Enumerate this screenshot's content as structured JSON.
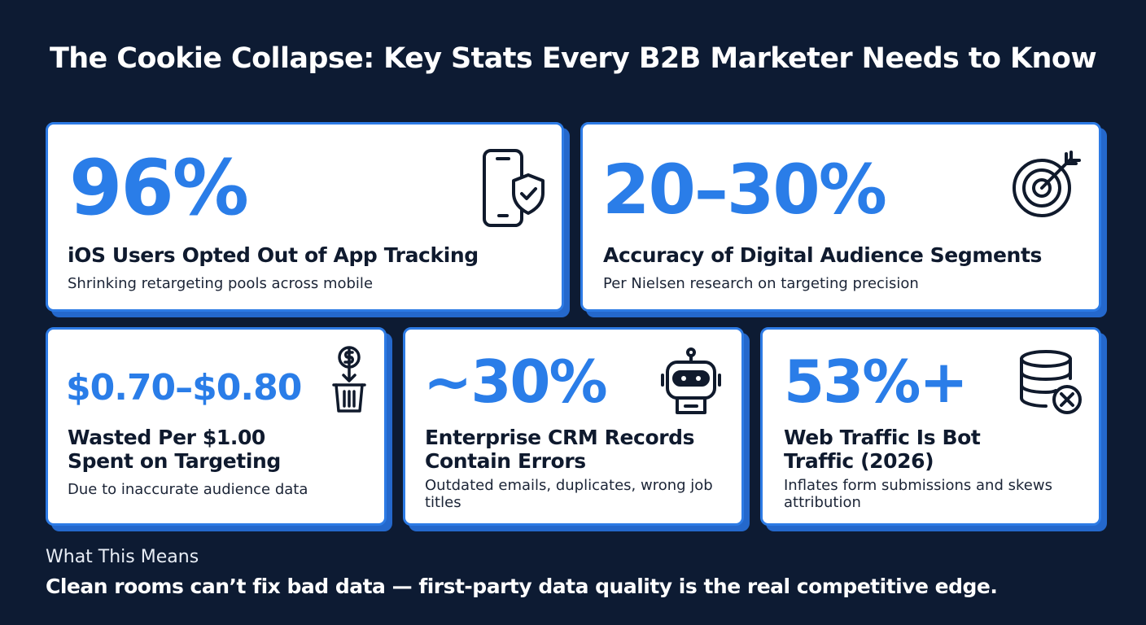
{
  "title": "The Cookie Collapse: Key Stats Every B2B Marketer Needs to Know",
  "colors": {
    "background": "#0d1b33",
    "accent_blue": "#2a7de8",
    "card_border": "#2d7be5",
    "card_shadow": "#2468cc",
    "icon_stroke": "#101a2c"
  },
  "cards": [
    {
      "stat": "96%",
      "headline": "iOS Users Opted Out of App Tracking",
      "subtext": "Shrinking retargeting pools across mobile",
      "icon": "phone-shield-check-icon"
    },
    {
      "stat": "20–30%",
      "headline": "Accuracy of Digital Audience Segments",
      "subtext": "Per Nielsen research on targeting precision",
      "icon": "target-arrow-icon"
    },
    {
      "stat": "$0.70–$0.80",
      "headline": "Wasted Per $1.00 Spent on Targeting",
      "subtext": "Due to inaccurate audience data",
      "icon": "money-trash-icon"
    },
    {
      "stat": "~30%",
      "headline": "Enterprise CRM Records Contain Errors",
      "subtext": "Outdated emails, duplicates, wrong job titles",
      "icon": "robot-icon"
    },
    {
      "stat": "53%+",
      "headline": "Web Traffic Is Bot Traffic (2026)",
      "subtext": "Inflates form submissions and skews attribution",
      "icon": "database-error-icon"
    }
  ],
  "footer": {
    "label": "What This Means",
    "text": "Clean rooms can’t fix bad data — first-party data quality is the real competitive edge."
  }
}
